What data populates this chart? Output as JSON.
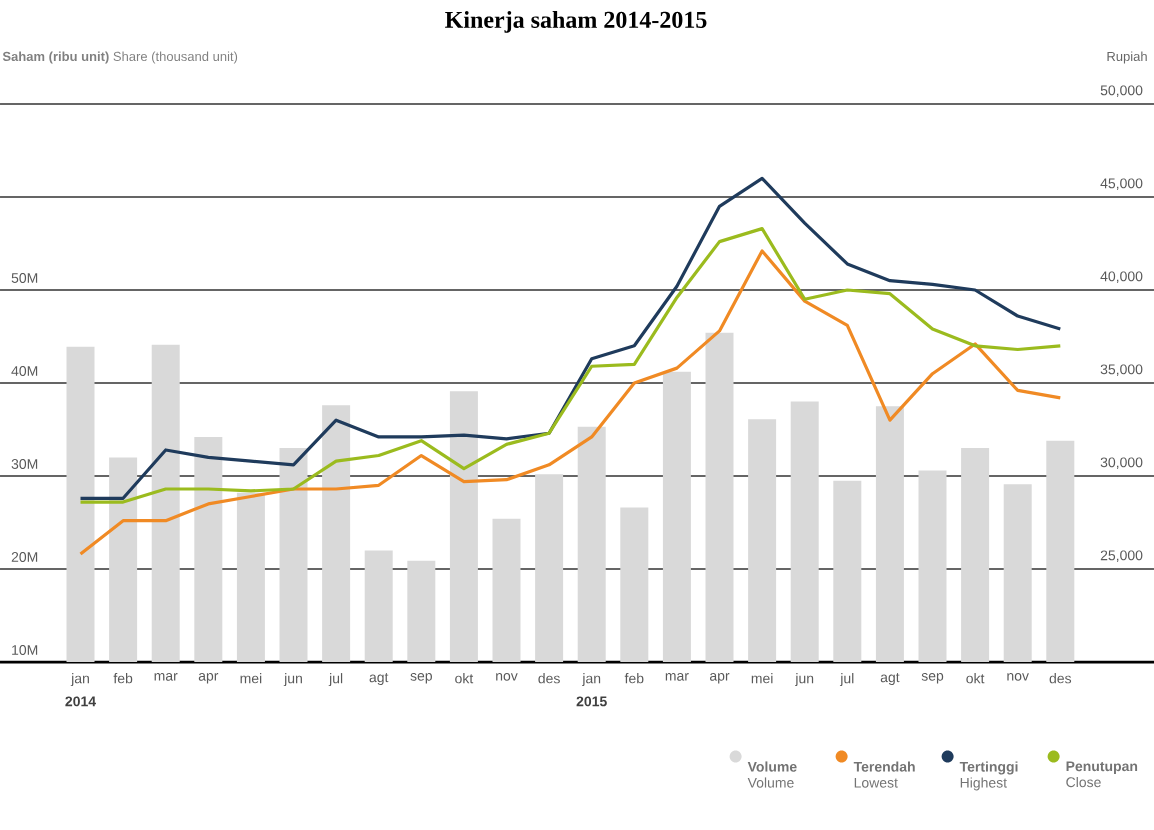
{
  "chart_data": {
    "type": "bar",
    "title": "Kinerja saham 2014-2015",
    "ylabel": "**Saham (ribu unit)** Share (thousand unit)",
    "y2label": "Rupiah",
    "categories": [
      "jan",
      "feb",
      "mar",
      "apr",
      "mei",
      "jun",
      "jul",
      "agt",
      "sep",
      "okt",
      "nov",
      "des",
      "jan",
      "feb",
      "mar",
      "apr",
      "mei",
      "jun",
      "jul",
      "agt",
      "sep",
      "okt",
      "nov",
      "des"
    ],
    "annotations": [
      "2014",
      "2015"
    ],
    "ylim": [
      10,
      70
    ],
    "yticks": [
      {
        "value": 10,
        "label": "10M"
      },
      {
        "value": 20,
        "label": "20M"
      },
      {
        "value": 30,
        "label": "30M"
      },
      {
        "value": 40,
        "label": "40M"
      },
      {
        "value": 50,
        "label": "50M"
      },
      {
        "value": 60,
        "label": null
      },
      {
        "value": 70,
        "label": null
      }
    ],
    "y2lim": [
      20000,
      50000
    ],
    "y2ticks": [
      {
        "value": 25000,
        "label": "25,000"
      },
      {
        "value": 30000,
        "label": "30,000"
      },
      {
        "value": 35000,
        "label": "35,000"
      },
      {
        "value": 40000,
        "label": "40,000"
      },
      {
        "value": 45000,
        "label": "45,000"
      },
      {
        "value": 50000,
        "label": "50,000"
      }
    ],
    "grid": "y",
    "legend": "bottom right",
    "series": [
      {
        "name": "**Volume** Volume",
        "color": "#d9d9d9",
        "values": [
          43.9,
          32,
          44.1,
          34.2,
          28.2,
          33,
          37.6,
          22,
          20.9,
          39.1,
          25.4,
          30.2,
          35.3,
          26.6,
          41.2,
          45.4,
          36.1,
          38,
          29.5,
          37.5,
          30.6,
          33,
          29.1,
          33.8
        ]
      },
      {
        "name": "**Terendah** Lowest",
        "type": "line",
        "axis": "y2",
        "color": "#f08a24",
        "values": [
          25800,
          27600,
          27600,
          28500,
          28900,
          29300,
          29300,
          29500,
          31100,
          29700,
          29800,
          30600,
          32100,
          35000,
          35800,
          37800,
          42100,
          39400,
          38100,
          33000,
          35500,
          37100,
          34600,
          34200
        ]
      },
      {
        "name": "**Tertinggi** Highest",
        "type": "line",
        "axis": "y2",
        "color": "#1f3b5c",
        "values": [
          28800,
          28800,
          31400,
          31000,
          30800,
          30600,
          33000,
          32100,
          32100,
          32200,
          32000,
          32300,
          36300,
          37000,
          40200,
          44500,
          46000,
          43600,
          41400,
          40500,
          40300,
          40000,
          38600,
          37900
        ]
      },
      {
        "name": "**Penutupan** Close",
        "type": "line",
        "axis": "y2",
        "color": "#9bbb1e",
        "values": [
          28600,
          28600,
          29300,
          29300,
          29200,
          29300,
          30800,
          31100,
          31900,
          30400,
          31700,
          32300,
          35900,
          36000,
          39600,
          42600,
          43300,
          39500,
          40000,
          39800,
          37900,
          37000,
          36800,
          37000
        ]
      }
    ]
  }
}
